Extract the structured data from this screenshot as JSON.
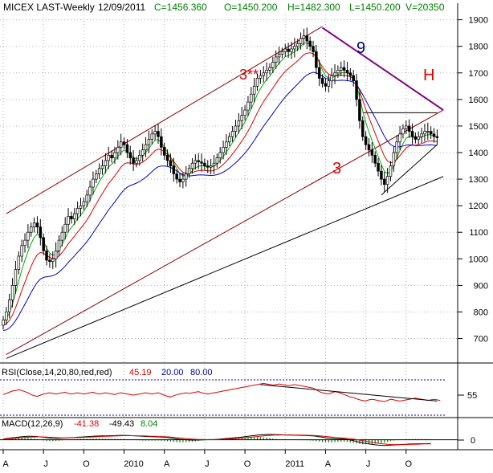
{
  "header": {
    "symbol": "MICEX LAST-Weekly",
    "date": "12/09/2011",
    "close": "C=1456.360",
    "open": "O=1450.200",
    "high": "H=1482.300",
    "low": "L=1450.200",
    "volume": "V=20350"
  },
  "colors": {
    "background": "#ffffff",
    "grid": "#b0b0b0",
    "up_candle": "#ffffff",
    "down_candle": "#000000",
    "ma_fast": "#00b000",
    "ma_mid": "#e00000",
    "ma_slow": "#0000c0",
    "channel": "#8b0000",
    "trend": "#000000",
    "resistance": "#800080",
    "annotation_red": "#e00000",
    "annotation_blue": "#000080",
    "rsi_line": "#e00000",
    "rsi_band": "#0000a0",
    "macd_line": "#000000",
    "macd_signal": "#e00000",
    "macd_hist": "#008000"
  },
  "chart_data": [
    {
      "type": "candlestick",
      "panel": "price",
      "ylim": [
        620,
        1920
      ],
      "yticks": [
        700,
        800,
        900,
        1000,
        1100,
        1200,
        1300,
        1400,
        1500,
        1600,
        1700,
        1800,
        1900
      ],
      "x_labels": [
        "A",
        "J",
        "O",
        "2010",
        "A",
        "J",
        "O",
        "2011",
        "A",
        "J",
        "O"
      ],
      "x_label_weeks": [
        0,
        13,
        26,
        39,
        52,
        65,
        78,
        91,
        104,
        117,
        130
      ],
      "weeks": 144,
      "close": [
        770,
        800,
        845,
        900,
        960,
        1010,
        1050,
        1070,
        1100,
        1120,
        1135,
        1120,
        1080,
        1030,
        995,
        990,
        1000,
        1030,
        1070,
        1100,
        1130,
        1160,
        1150,
        1170,
        1190,
        1200,
        1215,
        1240,
        1270,
        1300,
        1320,
        1340,
        1350,
        1370,
        1390,
        1380,
        1400,
        1420,
        1440,
        1430,
        1400,
        1380,
        1360,
        1370,
        1390,
        1410,
        1430,
        1450,
        1470,
        1480,
        1460,
        1420,
        1390,
        1370,
        1350,
        1320,
        1300,
        1290,
        1300,
        1320,
        1340,
        1360,
        1370,
        1365,
        1360,
        1350,
        1345,
        1350,
        1360,
        1380,
        1400,
        1420,
        1440,
        1460,
        1480,
        1500,
        1520,
        1540,
        1560,
        1590,
        1620,
        1650,
        1680,
        1690,
        1700,
        1710,
        1720,
        1740,
        1760,
        1770,
        1780,
        1790,
        1780,
        1790,
        1800,
        1810,
        1830,
        1840,
        1820,
        1800,
        1780,
        1720,
        1680,
        1660,
        1650,
        1670,
        1690,
        1700,
        1710,
        1720,
        1710,
        1700,
        1690,
        1670,
        1600,
        1520,
        1460,
        1430,
        1410,
        1390,
        1360,
        1330,
        1300,
        1280,
        1310,
        1350,
        1400,
        1440,
        1470,
        1490,
        1500,
        1480,
        1460,
        1450,
        1460,
        1470,
        1480,
        1480,
        1470,
        1460,
        1456
      ],
      "rsi_value": "45.19",
      "macd_values": {
        "macd": "-41.38",
        "signal": "-49.43",
        "hist": "8.04"
      },
      "moving_averages": [
        "fast",
        "mid",
        "slow"
      ],
      "annotations": [
        {
          "text": "3**",
          "color": "annotation_red"
        },
        {
          "text": "9",
          "color": "annotation_blue"
        },
        {
          "text": "H",
          "color": "annotation_red"
        },
        {
          "text": "3",
          "color": "annotation_red"
        }
      ],
      "trendlines": {
        "channel_upper": [
          [
            1,
            1170
          ],
          [
            103,
            1875
          ]
        ],
        "channel_lower": [
          [
            1,
            640
          ],
          [
            142,
            1560
          ]
        ],
        "support": [
          [
            1,
            625
          ],
          [
            142,
            1310
          ]
        ],
        "resistance": [
          [
            103,
            1870
          ],
          [
            142,
            1560
          ]
        ],
        "recent_support": [
          [
            122,
            1240
          ],
          [
            140,
            1430
          ]
        ],
        "recent_resistance_h": [
          [
            116,
            1550
          ],
          [
            140,
            1550
          ]
        ]
      }
    },
    {
      "type": "line",
      "panel": "rsi",
      "title": "RSI(Close,14,20,80,red,red)",
      "values_label": [
        "45.19",
        "20.00",
        "80.00"
      ],
      "ylim": [
        20,
        80
      ],
      "yticks": [
        55
      ],
      "series": [
        {
          "name": "RSI",
          "values": [
            55,
            57,
            59,
            61,
            62,
            63,
            62,
            60,
            58,
            55,
            53,
            52,
            54,
            56,
            57,
            58,
            57,
            56,
            57,
            58,
            59,
            57,
            56,
            57,
            58,
            57,
            56,
            57,
            58,
            59,
            57,
            56,
            57,
            58,
            57,
            56,
            55,
            57,
            58,
            57,
            56,
            55,
            54,
            55,
            56,
            57,
            58,
            57,
            56,
            57,
            58,
            56,
            54,
            52,
            51,
            53,
            55,
            56,
            57,
            58,
            57,
            58,
            59,
            60,
            58,
            57,
            56,
            57,
            58,
            59,
            60,
            61,
            62,
            63,
            64,
            65,
            66,
            67,
            68,
            69,
            70,
            71,
            72,
            73,
            74,
            73,
            72,
            71,
            72,
            73,
            72,
            71,
            70,
            71,
            72,
            71,
            70,
            69,
            68,
            67,
            66,
            63,
            60,
            58,
            57,
            56,
            58,
            60,
            59,
            57,
            55,
            53,
            51,
            50,
            48,
            46,
            45,
            44,
            46,
            47,
            46,
            45,
            44,
            43,
            45,
            47,
            46,
            45,
            44,
            45,
            46,
            47,
            48,
            49,
            48,
            47,
            46,
            45,
            46,
            47,
            46,
            45
          ]
        }
      ],
      "trend_line": [
        [
          83,
          72
        ],
        [
          140,
          44
        ]
      ]
    },
    {
      "type": "bar_line",
      "panel": "macd",
      "title": "MACD(12,26,9)",
      "ylim": [
        -90,
        110
      ],
      "yticks": [
        0
      ],
      "series": [
        {
          "name": "MACD",
          "values": [
            10,
            14,
            18,
            22,
            26,
            30,
            34,
            36,
            38,
            38,
            37,
            35,
            31,
            27,
            23,
            20,
            18,
            17,
            17,
            18,
            20,
            22,
            24,
            26,
            28,
            30,
            32,
            34,
            36,
            38,
            40,
            41,
            42,
            43,
            44,
            45,
            46,
            47,
            48,
            48,
            47,
            46,
            44,
            42,
            40,
            38,
            36,
            35,
            34,
            33,
            32,
            30,
            27,
            24,
            20,
            15,
            10,
            6,
            3,
            0,
            -2,
            -3,
            -3,
            -2,
            -1,
            0,
            1,
            2,
            3,
            5,
            8,
            11,
            14,
            17,
            20,
            23,
            26,
            30,
            34,
            38,
            42,
            46,
            50,
            54,
            56,
            58,
            58,
            57,
            56,
            55,
            54,
            53,
            52,
            51,
            50,
            49,
            48,
            47,
            46,
            44,
            42,
            38,
            33,
            28,
            22,
            18,
            15,
            13,
            12,
            10,
            8,
            4,
            -2,
            -10,
            -18,
            -26,
            -34,
            -40,
            -45,
            -50,
            -54,
            -58,
            -60,
            -61,
            -60,
            -58,
            -56,
            -54,
            -52,
            -50,
            -48,
            -46,
            -45,
            -44,
            -43,
            -42,
            -42,
            -41,
            -41
          ]
        }
      ]
    }
  ]
}
